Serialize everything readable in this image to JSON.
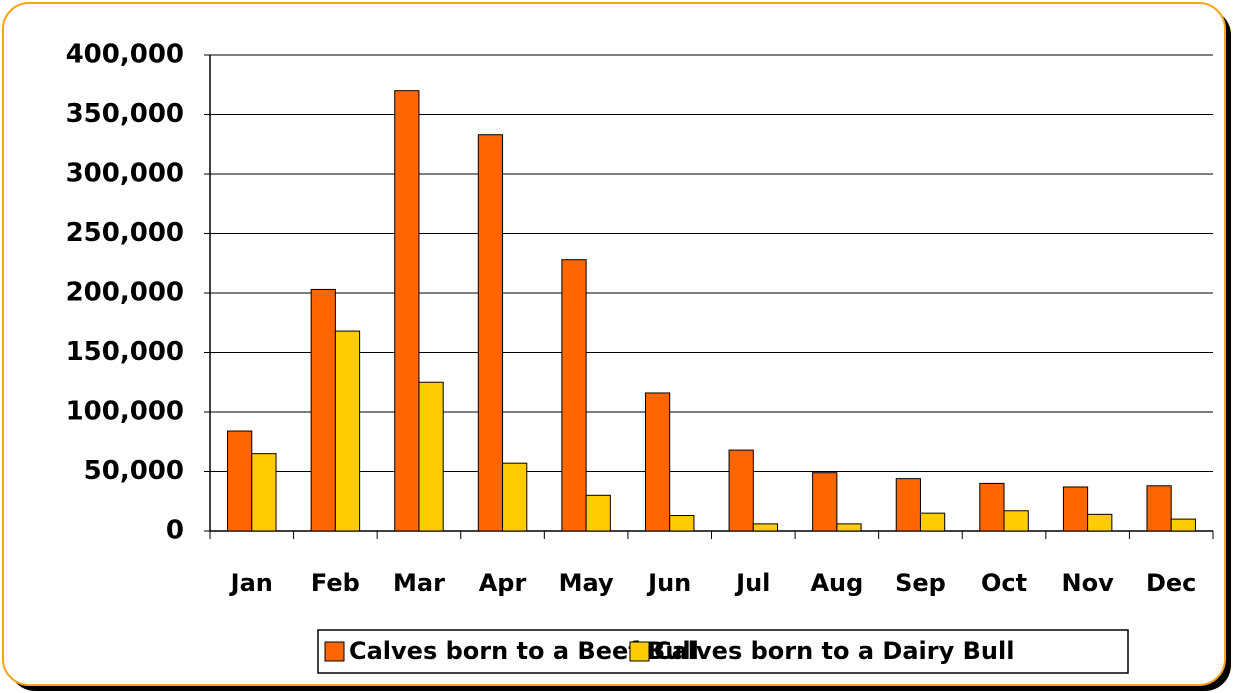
{
  "chart_data": {
    "type": "bar",
    "categories": [
      "Jan",
      "Feb",
      "Mar",
      "Apr",
      "May",
      "Jun",
      "Jul",
      "Aug",
      "Sep",
      "Oct",
      "Nov",
      "Dec"
    ],
    "series": [
      {
        "name": "Calves born to a Beef Bull",
        "color": "#ff6600",
        "values": [
          84000,
          203000,
          370000,
          333000,
          228000,
          116000,
          68000,
          49000,
          44000,
          40000,
          37000,
          38000
        ]
      },
      {
        "name": "Calves born to a Dairy Bull",
        "color": "#ffcc00",
        "values": [
          65000,
          168000,
          125000,
          57000,
          30000,
          13000,
          6000,
          6000,
          15000,
          17000,
          14000,
          10000
        ]
      }
    ],
    "ylim": [
      0,
      400000
    ],
    "yticks": [
      0,
      {
        "value": 50000,
        "label": "50,000"
      },
      {
        "value": 100000,
        "label": "100,000"
      },
      {
        "value": 150000,
        "label": "150,000"
      },
      {
        "value": 200000,
        "label": "200,000"
      },
      {
        "value": 250000,
        "label": "250,000"
      },
      {
        "value": 300000,
        "label": "300,000"
      },
      {
        "value": 350000,
        "label": "350,000"
      },
      {
        "value": 400000,
        "label": "400,000"
      }
    ],
    "grid": true,
    "legend": "bottom"
  }
}
